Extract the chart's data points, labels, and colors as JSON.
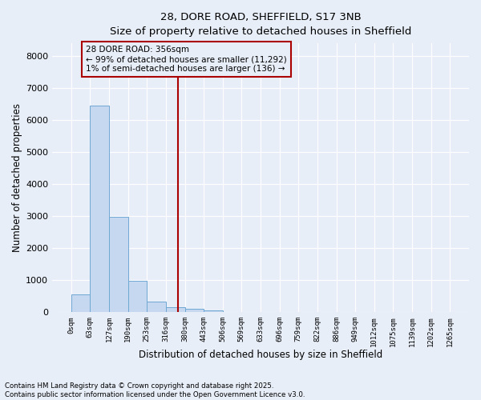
{
  "title_line1": "28, DORE ROAD, SHEFFIELD, S17 3NB",
  "title_line2": "Size of property relative to detached houses in Sheffield",
  "xlabel": "Distribution of detached houses by size in Sheffield",
  "ylabel": "Number of detached properties",
  "bar_color": "#c5d8f0",
  "bar_edge_color": "#6fa8d4",
  "background_color": "#e8eef8",
  "grid_color": "#ffffff",
  "vline_x": 356,
  "vline_color": "#aa0000",
  "annotation_text": "28 DORE ROAD: 356sqm\n← 99% of detached houses are smaller (11,292)\n1% of semi-detached houses are larger (136) →",
  "annotation_box_color": "#aa0000",
  "bin_edges": [
    0,
    63,
    127,
    190,
    253,
    316,
    380,
    443,
    506,
    569,
    633,
    696,
    759,
    822,
    886,
    949,
    1012,
    1075,
    1139,
    1202,
    1265
  ],
  "bar_heights": [
    550,
    6450,
    2980,
    980,
    340,
    150,
    100,
    55,
    10,
    5,
    2,
    1,
    0,
    0,
    0,
    0,
    0,
    0,
    0,
    0
  ],
  "ylim": [
    0,
    8400
  ],
  "yticks": [
    0,
    1000,
    2000,
    3000,
    4000,
    5000,
    6000,
    7000,
    8000
  ],
  "footer_text": "Contains HM Land Registry data © Crown copyright and database right 2025.\nContains public sector information licensed under the Open Government Licence v3.0.",
  "figsize": [
    6.0,
    5.0
  ],
  "dpi": 100
}
